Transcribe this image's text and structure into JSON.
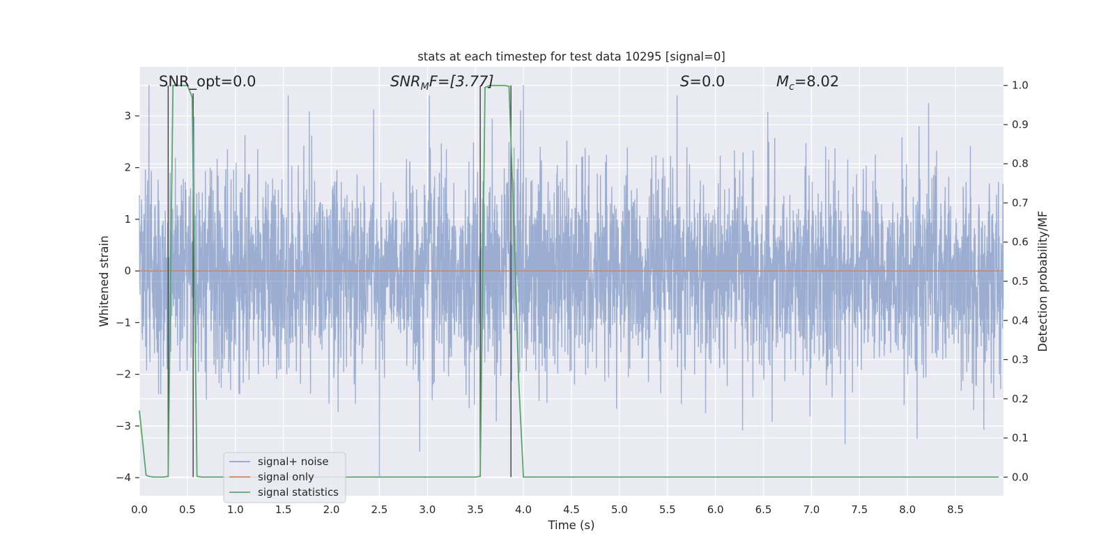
{
  "chart_data": {
    "type": "line",
    "title": "stats at each timestep for test data 10295 [signal=0]",
    "xlabel": "Time (s)",
    "ylabel": "Whitened strain",
    "y2label": "Detection probability/MF",
    "xlim": [
      0.0,
      9.0
    ],
    "ylim": [
      -4.35,
      3.95
    ],
    "y2lim": [
      -0.0475,
      1.0475
    ],
    "x_ticks": [
      "0.0",
      "0.5",
      "1.0",
      "1.5",
      "2.0",
      "2.5",
      "3.0",
      "3.5",
      "4.0",
      "4.5",
      "5.0",
      "5.5",
      "6.0",
      "6.5",
      "7.0",
      "7.5",
      "8.0",
      "8.5"
    ],
    "y_ticks": [
      "3",
      "2",
      "1",
      "0",
      "−1",
      "−2",
      "−3",
      "−4"
    ],
    "y2_ticks": [
      "1.0",
      "0.9",
      "0.8",
      "0.7",
      "0.6",
      "0.5",
      "0.4",
      "0.3",
      "0.2",
      "0.1",
      "0.0"
    ],
    "grid": true,
    "legend_position": "lower-left",
    "annotations": {
      "snr_opt": "SNR_opt=0.0",
      "snr_mf_main": "SNR",
      "snr_mf_sub": "M",
      "snr_mf_rest": "F=[3.77]",
      "s_italic": "S",
      "s_rest": "=0.0",
      "mc_main": "M",
      "mc_sub": "c",
      "mc_rest": "=8.02"
    },
    "series": [
      {
        "name": "signal+ noise",
        "color": "#4c72b0",
        "opacity": 0.5,
        "description": "whitened noise, roughly standard normal, spanning about -3.5 to 3.6",
        "notable_spikes": [
          [
            0.1,
            3.6
          ],
          [
            1.55,
            3.4
          ],
          [
            2.5,
            -4.0
          ],
          [
            2.92,
            -3.5
          ],
          [
            3.02,
            3.4
          ],
          [
            4.0,
            3.6
          ],
          [
            5.6,
            3.4
          ],
          [
            7.35,
            -3.35
          ],
          [
            8.1,
            -3.25
          ],
          [
            8.22,
            3.25
          ]
        ]
      },
      {
        "name": "signal only",
        "color": "#dd8452",
        "x": [
          0.0,
          9.0
        ],
        "y": [
          0.0,
          0.0
        ]
      },
      {
        "name": "signal statistics",
        "axis": "right",
        "color": "#55a868",
        "x": [
          0.0,
          0.07,
          0.1,
          0.15,
          0.2,
          0.25,
          0.3,
          0.35,
          0.4,
          0.45,
          0.5,
          0.55,
          0.6,
          0.65,
          0.7,
          3.5,
          3.55,
          3.6,
          3.65,
          3.7,
          3.75,
          3.8,
          3.85,
          3.9,
          3.95,
          4.0,
          4.05,
          8.95
        ],
        "y": [
          0.17,
          0.005,
          0.002,
          0.0,
          0.0,
          0.0,
          0.002,
          1.0,
          1.0,
          1.0,
          1.0,
          0.97,
          0.002,
          0.0,
          0.0,
          0.0,
          0.002,
          0.995,
          1.0,
          1.0,
          1.0,
          1.0,
          0.998,
          0.65,
          0.25,
          0.0,
          0.0,
          0.0
        ]
      }
    ],
    "peak_markers": {
      "color": "#404040",
      "description": "thin vertical lines marking detected peak boundaries",
      "lines": [
        [
          0.3,
          0.0,
          1.0
        ],
        [
          0.56,
          0.0,
          0.98
        ],
        [
          3.55,
          0.0,
          1.0
        ],
        [
          3.87,
          0.0,
          1.0
        ]
      ]
    },
    "colors": {
      "plot_background": "#eaeaf2",
      "grid": "#ffffff",
      "text": "#262626"
    }
  }
}
